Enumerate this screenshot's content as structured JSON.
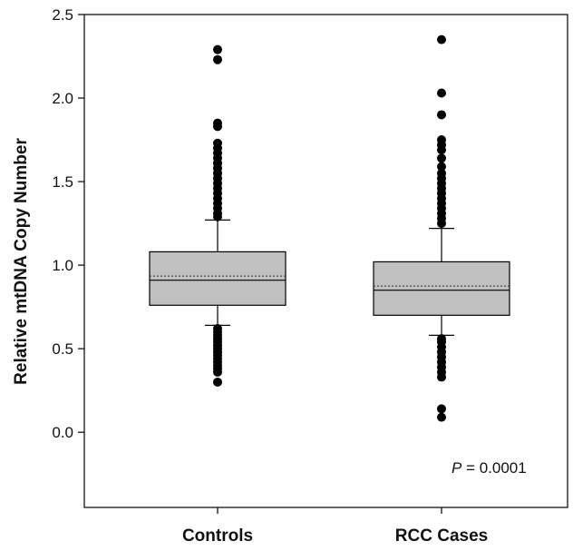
{
  "chart_data": {
    "type": "box",
    "ylabel": "Relative mtDNA Copy Number",
    "ylim": [
      -0.45,
      2.5
    ],
    "yticks": [
      0.0,
      0.5,
      1.0,
      1.5,
      2.0,
      2.5
    ],
    "ytick_labels": [
      "0.0",
      "0.5",
      "1.0",
      "1.5",
      "2.0",
      "2.5"
    ],
    "categories": [
      "Controls",
      "RCC Cases"
    ],
    "box_fill": "#c0c0c0",
    "outlier_color": "#000000",
    "series": [
      {
        "whisker_low": 0.64,
        "q1": 0.76,
        "median": 0.91,
        "mean": 0.935,
        "q3": 1.08,
        "whisker_high": 1.27,
        "outliers": [
          0.3,
          0.36,
          0.38,
          0.4,
          0.42,
          0.44,
          0.46,
          0.48,
          0.5,
          0.52,
          0.54,
          0.56,
          0.58,
          0.6,
          0.62,
          1.29,
          1.31,
          1.34,
          1.37,
          1.4,
          1.43,
          1.46,
          1.49,
          1.52,
          1.55,
          1.58,
          1.61,
          1.64,
          1.67,
          1.7,
          1.73,
          1.83,
          1.85,
          2.23,
          2.29
        ]
      },
      {
        "whisker_low": 0.58,
        "q1": 0.7,
        "median": 0.85,
        "mean": 0.875,
        "q3": 1.02,
        "whisker_high": 1.22,
        "outliers": [
          0.09,
          0.14,
          0.33,
          0.36,
          0.39,
          0.42,
          0.45,
          0.48,
          0.51,
          0.54,
          0.56,
          1.25,
          1.28,
          1.31,
          1.34,
          1.37,
          1.4,
          1.43,
          1.46,
          1.49,
          1.52,
          1.55,
          1.59,
          1.64,
          1.69,
          1.72,
          1.75,
          1.9,
          2.03,
          2.35
        ]
      }
    ],
    "annotation": {
      "p_label": "P",
      "p_value": " = 0.0001"
    }
  }
}
